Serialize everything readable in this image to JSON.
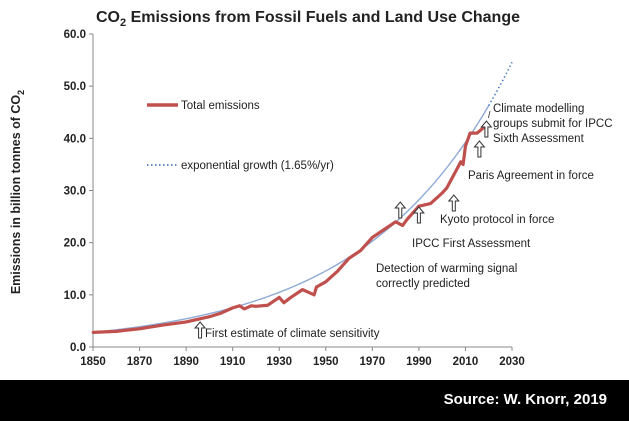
{
  "chart_data": {
    "type": "line",
    "title_parts": {
      "pre": "CO",
      "sub": "2",
      "post": " Emissions from Fossil Fuels and Land Use Change"
    },
    "ylabel_parts": {
      "pre": "Emissions in billion tonnes of CO",
      "sub": "2"
    },
    "xlabel": "",
    "xlim": [
      1850,
      2030
    ],
    "ylim": [
      0,
      60
    ],
    "x_ticks": [
      "1850",
      "1870",
      "1890",
      "1910",
      "1930",
      "1950",
      "1970",
      "1990",
      "2010",
      "2030"
    ],
    "y_ticks": [
      "0.0",
      "10.0",
      "20.0",
      "30.0",
      "40.0",
      "50.0",
      "60.0"
    ],
    "legend": [
      {
        "label": "Total emissions",
        "color": "#c0504d",
        "style": "solid"
      },
      {
        "label": "exponential growth (1.65%/yr)",
        "color": "#4f81bd",
        "style": "dotted"
      }
    ],
    "series": [
      {
        "name": "Total emissions",
        "color": "#c0504d",
        "x": [
          1850,
          1860,
          1870,
          1880,
          1890,
          1900,
          1905,
          1910,
          1913,
          1915,
          1918,
          1920,
          1925,
          1930,
          1932,
          1935,
          1940,
          1945,
          1946,
          1950,
          1955,
          1960,
          1965,
          1970,
          1975,
          1980,
          1983,
          1985,
          1990,
          1995,
          2000,
          2002,
          2005,
          2008,
          2009,
          2010,
          2012,
          2015,
          2019
        ],
        "values": [
          2.8,
          3.0,
          3.5,
          4.2,
          4.8,
          5.8,
          6.5,
          7.5,
          7.9,
          7.3,
          7.9,
          7.8,
          8.0,
          9.5,
          8.5,
          9.5,
          11.0,
          10.0,
          11.5,
          12.5,
          14.5,
          17.0,
          18.5,
          21.0,
          22.5,
          24.0,
          23.3,
          24.5,
          27.0,
          27.5,
          29.5,
          30.5,
          33.0,
          35.5,
          35.0,
          38.5,
          41.0,
          41.0,
          42.5
        ]
      },
      {
        "name": "exponential growth (1.65%/yr)",
        "color": "#4f81bd",
        "base_year": 1850,
        "base_value": 2.8,
        "rate": 0.0165,
        "x_end": 2030
      }
    ],
    "annotations": [
      {
        "lines": [
          "Climate modelling",
          "groups submit for IPCC",
          "Sixth Assessment"
        ],
        "year": 2019
      },
      {
        "lines": [
          "Paris Agreement in force"
        ],
        "year": 2016
      },
      {
        "lines": [
          "Kyoto protocol in force"
        ],
        "year": 2005
      },
      {
        "lines": [
          "IPCC First Assessment"
        ],
        "year": 1990
      },
      {
        "lines": [
          "Detection of warming signal",
          "correctly predicted"
        ],
        "year": 1982
      },
      {
        "lines": [
          "First estimate of climate sensitivity"
        ],
        "year": 1896
      }
    ]
  },
  "footer": {
    "source": "Source: W. Knorr, 2019"
  }
}
